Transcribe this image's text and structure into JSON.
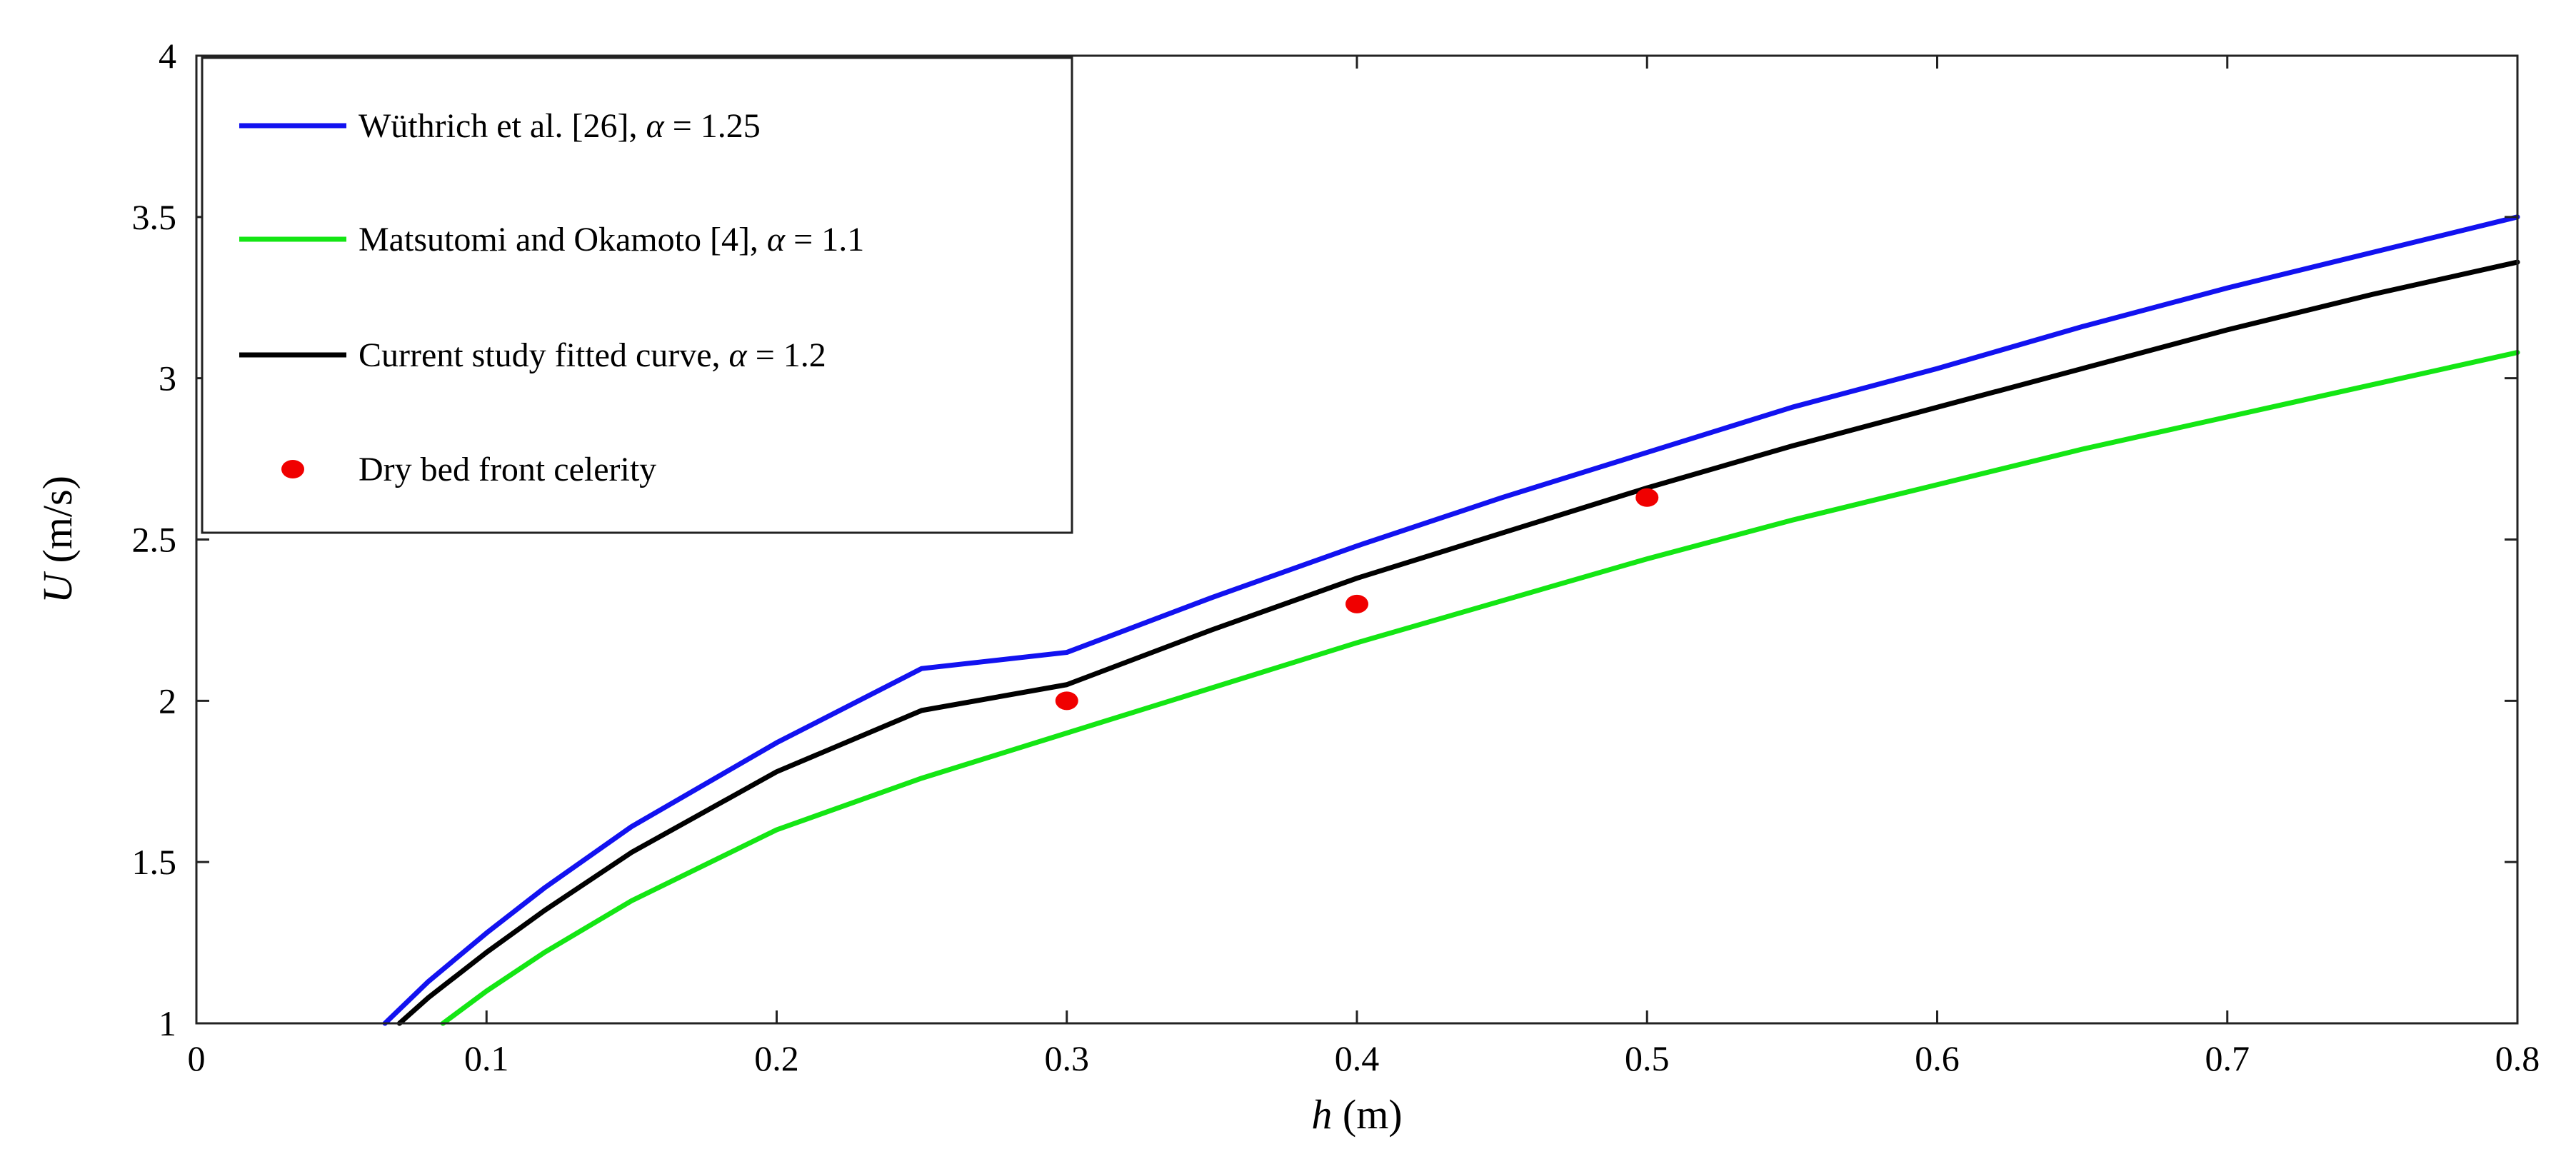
{
  "chart_data": {
    "type": "line",
    "xlabel": {
      "var": "h",
      "unit": " (m)"
    },
    "ylabel": {
      "var": "U",
      "unit": " (m/s)"
    },
    "xlim": [
      0,
      0.8
    ],
    "ylim": [
      1,
      4
    ],
    "xticks": [
      0,
      0.1,
      0.2,
      0.3,
      0.4,
      0.5,
      0.6,
      0.7,
      0.8
    ],
    "xtick_labels": [
      "0",
      "0.1",
      "0.2",
      "0.3",
      "0.4",
      "0.5",
      "0.6",
      "0.7",
      "0.8"
    ],
    "yticks": [
      1,
      1.5,
      2,
      2.5,
      3,
      3.5,
      4
    ],
    "ytick_labels": [
      "1",
      "1.5",
      "2",
      "2.5",
      "3",
      "3.5",
      "4"
    ],
    "grid": false,
    "legend_position": "top-left",
    "series": [
      {
        "name": "Wüthrich et al. [26], α = 1.25",
        "legend_prefix": "Wüthrich et al. [26], ",
        "alpha_label": "α",
        "alpha_value": " = 1.25",
        "color": "#1212f0",
        "style": "line",
        "x": [
          0.065,
          0.08,
          0.1,
          0.12,
          0.15,
          0.2,
          0.25,
          0.3,
          0.35,
          0.4,
          0.45,
          0.5,
          0.55,
          0.6,
          0.65,
          0.7,
          0.75,
          0.8
        ],
        "y": [
          1.0,
          1.13,
          1.28,
          1.42,
          1.61,
          1.87,
          2.1,
          2.15,
          2.32,
          2.48,
          2.63,
          2.77,
          2.91,
          3.03,
          3.16,
          3.28,
          3.39,
          3.5
        ]
      },
      {
        "name": "Matsutomi and Okamoto [4], α = 1.1",
        "legend_prefix": "Matsutomi and Okamoto [4], ",
        "alpha_label": "α",
        "alpha_value": " = 1.1",
        "color": "#14e614",
        "style": "line",
        "x": [
          0.085,
          0.1,
          0.12,
          0.15,
          0.2,
          0.25,
          0.3,
          0.35,
          0.4,
          0.45,
          0.5,
          0.55,
          0.6,
          0.65,
          0.7,
          0.75,
          0.8
        ],
        "y": [
          1.0,
          1.1,
          1.22,
          1.38,
          1.6,
          1.76,
          1.9,
          2.04,
          2.18,
          2.31,
          2.44,
          2.56,
          2.67,
          2.78,
          2.88,
          2.98,
          3.08
        ]
      },
      {
        "name": "Current study fitted curve, α = 1.2",
        "legend_prefix": "Current study fitted curve, ",
        "alpha_label": "α",
        "alpha_value": " = 1.2",
        "color": "#000000",
        "style": "line",
        "x": [
          0.07,
          0.08,
          0.1,
          0.12,
          0.15,
          0.2,
          0.25,
          0.3,
          0.35,
          0.4,
          0.45,
          0.5,
          0.55,
          0.6,
          0.65,
          0.7,
          0.75,
          0.8
        ],
        "y": [
          1.0,
          1.08,
          1.22,
          1.35,
          1.53,
          1.78,
          1.97,
          2.05,
          2.22,
          2.38,
          2.52,
          2.66,
          2.79,
          2.91,
          3.03,
          3.15,
          3.26,
          3.36
        ]
      },
      {
        "name": "Dry bed front celerity",
        "legend_prefix": "Dry bed front celerity",
        "color": "#f00000",
        "style": "marker",
        "x": [
          0.3,
          0.4,
          0.5
        ],
        "y": [
          2.0,
          2.3,
          2.63
        ]
      }
    ]
  }
}
